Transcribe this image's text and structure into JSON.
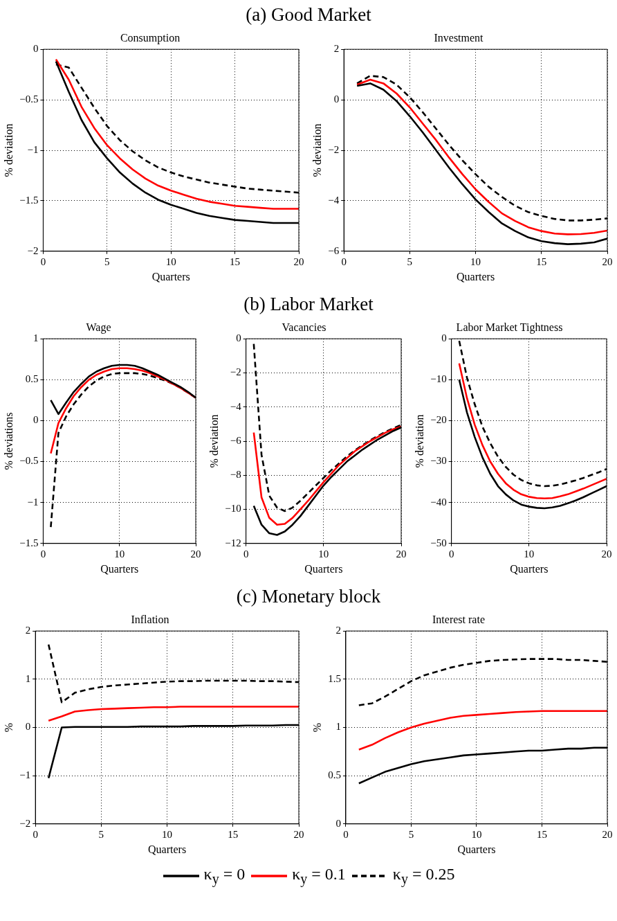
{
  "chart_data": [
    {
      "type": "line",
      "annotations": [
        "(a) Good Market"
      ],
      "title": "Consumption",
      "xlabel": "Quarters",
      "ylabel": "% deviation",
      "x": [
        1,
        2,
        3,
        4,
        5,
        6,
        7,
        8,
        9,
        10,
        11,
        12,
        13,
        14,
        15,
        16,
        17,
        18,
        19,
        20
      ],
      "xlim": [
        0,
        20
      ],
      "xticks": [
        0,
        5,
        10,
        15,
        20
      ],
      "ylim": [
        -2,
        0
      ],
      "yticks": [
        -2,
        -1.5,
        -1,
        -0.5,
        0
      ],
      "grid": true,
      "series": [
        {
          "color": "#000000",
          "line_style": "solid",
          "values": [
            -0.12,
            -0.42,
            -0.7,
            -0.92,
            -1.08,
            -1.22,
            -1.33,
            -1.42,
            -1.49,
            -1.54,
            -1.58,
            -1.62,
            -1.65,
            -1.67,
            -1.69,
            -1.7,
            -1.71,
            -1.72,
            -1.72,
            -1.72
          ]
        },
        {
          "color": "#ff0000",
          "line_style": "solid",
          "values": [
            -0.1,
            -0.3,
            -0.57,
            -0.78,
            -0.95,
            -1.08,
            -1.19,
            -1.28,
            -1.35,
            -1.4,
            -1.44,
            -1.48,
            -1.51,
            -1.53,
            -1.55,
            -1.56,
            -1.57,
            -1.58,
            -1.58,
            -1.58
          ]
        },
        {
          "color": "#000000",
          "line_style": "dashed",
          "values": [
            -0.15,
            -0.18,
            -0.38,
            -0.58,
            -0.76,
            -0.9,
            -1.01,
            -1.1,
            -1.17,
            -1.22,
            -1.26,
            -1.29,
            -1.32,
            -1.34,
            -1.36,
            -1.38,
            -1.39,
            -1.4,
            -1.41,
            -1.42
          ]
        }
      ]
    },
    {
      "type": "line",
      "title": "Investment",
      "xlabel": "Quarters",
      "ylabel": "% deviation",
      "x": [
        1,
        2,
        3,
        4,
        5,
        6,
        7,
        8,
        9,
        10,
        11,
        12,
        13,
        14,
        15,
        16,
        17,
        18,
        19,
        20
      ],
      "xlim": [
        0,
        20
      ],
      "xticks": [
        0,
        5,
        10,
        15,
        20
      ],
      "ylim": [
        -6,
        2
      ],
      "yticks": [
        -6,
        -4,
        -2,
        0,
        2
      ],
      "grid": true,
      "series": [
        {
          "color": "#000000",
          "line_style": "solid",
          "values": [
            0.55,
            0.65,
            0.4,
            -0.05,
            -0.65,
            -1.3,
            -2.0,
            -2.7,
            -3.35,
            -3.95,
            -4.45,
            -4.9,
            -5.2,
            -5.45,
            -5.6,
            -5.68,
            -5.72,
            -5.7,
            -5.65,
            -5.5
          ]
        },
        {
          "color": "#ff0000",
          "line_style": "solid",
          "values": [
            0.6,
            0.8,
            0.65,
            0.25,
            -0.3,
            -0.95,
            -1.6,
            -2.3,
            -2.95,
            -3.55,
            -4.05,
            -4.5,
            -4.8,
            -5.05,
            -5.2,
            -5.3,
            -5.33,
            -5.32,
            -5.27,
            -5.18
          ]
        },
        {
          "color": "#000000",
          "line_style": "dashed",
          "values": [
            0.65,
            0.95,
            0.9,
            0.6,
            0.1,
            -0.5,
            -1.15,
            -1.8,
            -2.4,
            -2.95,
            -3.45,
            -3.85,
            -4.2,
            -4.45,
            -4.6,
            -4.72,
            -4.78,
            -4.78,
            -4.75,
            -4.7
          ]
        }
      ]
    },
    {
      "type": "line",
      "annotations": [
        "(b) Labor Market"
      ],
      "title": "Wage",
      "xlabel": "Quarters",
      "ylabel": "% deviations",
      "x": [
        1,
        2,
        3,
        4,
        5,
        6,
        7,
        8,
        9,
        10,
        11,
        12,
        13,
        14,
        15,
        16,
        17,
        18,
        19,
        20
      ],
      "xlim": [
        0,
        20
      ],
      "xticks": [
        0,
        10,
        20
      ],
      "ylim": [
        -1.5,
        1
      ],
      "yticks": [
        -1.5,
        -1,
        -0.5,
        0,
        0.5,
        1
      ],
      "grid": true,
      "series": [
        {
          "color": "#000000",
          "line_style": "solid",
          "values": [
            0.25,
            0.08,
            0.22,
            0.35,
            0.45,
            0.54,
            0.6,
            0.64,
            0.67,
            0.68,
            0.68,
            0.67,
            0.64,
            0.6,
            0.56,
            0.51,
            0.46,
            0.41,
            0.35,
            0.28
          ]
        },
        {
          "color": "#ff0000",
          "line_style": "solid",
          "values": [
            -0.4,
            -0.03,
            0.15,
            0.3,
            0.41,
            0.5,
            0.56,
            0.6,
            0.63,
            0.64,
            0.64,
            0.63,
            0.61,
            0.58,
            0.54,
            0.5,
            0.45,
            0.4,
            0.34,
            0.28
          ]
        },
        {
          "color": "#000000",
          "line_style": "dashed",
          "values": [
            -1.3,
            -0.15,
            0.05,
            0.2,
            0.32,
            0.42,
            0.49,
            0.54,
            0.57,
            0.58,
            0.58,
            0.58,
            0.57,
            0.55,
            0.52,
            0.49,
            0.45,
            0.4,
            0.34,
            0.28
          ]
        }
      ]
    },
    {
      "type": "line",
      "title": "Vacancies",
      "xlabel": "Quarters",
      "ylabel": "% deviation",
      "x": [
        1,
        2,
        3,
        4,
        5,
        6,
        7,
        8,
        9,
        10,
        11,
        12,
        13,
        14,
        15,
        16,
        17,
        18,
        19,
        20
      ],
      "xlim": [
        0,
        20
      ],
      "xticks": [
        0,
        10,
        20
      ],
      "ylim": [
        -12,
        0
      ],
      "yticks": [
        -12,
        -10,
        -8,
        -6,
        -4,
        -2,
        0
      ],
      "grid": true,
      "series": [
        {
          "color": "#000000",
          "line_style": "solid",
          "values": [
            -9.8,
            -10.9,
            -11.4,
            -11.5,
            -11.3,
            -10.9,
            -10.4,
            -9.8,
            -9.2,
            -8.6,
            -8.1,
            -7.65,
            -7.2,
            -6.85,
            -6.5,
            -6.2,
            -5.9,
            -5.65,
            -5.4,
            -5.2
          ]
        },
        {
          "color": "#ff0000",
          "line_style": "solid",
          "values": [
            -5.5,
            -9.3,
            -10.5,
            -10.9,
            -10.85,
            -10.5,
            -10.0,
            -9.5,
            -8.95,
            -8.4,
            -7.9,
            -7.4,
            -7.0,
            -6.6,
            -6.3,
            -6.0,
            -5.75,
            -5.5,
            -5.3,
            -5.15
          ]
        },
        {
          "color": "#000000",
          "line_style": "dashed",
          "values": [
            -0.3,
            -6.8,
            -9.2,
            -9.9,
            -10.1,
            -9.9,
            -9.5,
            -9.05,
            -8.6,
            -8.15,
            -7.7,
            -7.3,
            -6.9,
            -6.55,
            -6.25,
            -5.95,
            -5.7,
            -5.45,
            -5.25,
            -5.05
          ]
        }
      ]
    },
    {
      "type": "line",
      "title": "Labor Market Tightness",
      "xlabel": "Quarters",
      "ylabel": "% deviation",
      "x": [
        1,
        2,
        3,
        4,
        5,
        6,
        7,
        8,
        9,
        10,
        11,
        12,
        13,
        14,
        15,
        16,
        17,
        18,
        19,
        20
      ],
      "xlim": [
        0,
        20
      ],
      "xticks": [
        0,
        10,
        20
      ],
      "ylim": [
        -50,
        0
      ],
      "yticks": [
        -50,
        -40,
        -30,
        -20,
        -10,
        0
      ],
      "grid": true,
      "series": [
        {
          "color": "#000000",
          "line_style": "solid",
          "values": [
            -10,
            -18,
            -24,
            -29,
            -33,
            -36,
            -38,
            -39.5,
            -40.5,
            -41,
            -41.3,
            -41.4,
            -41.2,
            -40.8,
            -40.2,
            -39.5,
            -38.7,
            -37.8,
            -36.9,
            -36
          ]
        },
        {
          "color": "#ff0000",
          "line_style": "solid",
          "values": [
            -6,
            -14.5,
            -21,
            -26,
            -30,
            -33,
            -35.3,
            -36.9,
            -38,
            -38.6,
            -38.9,
            -39,
            -38.9,
            -38.5,
            -38,
            -37.3,
            -36.6,
            -35.8,
            -35,
            -34.2
          ]
        },
        {
          "color": "#000000",
          "line_style": "dashed",
          "values": [
            -0.5,
            -9.5,
            -16,
            -21.5,
            -25.5,
            -28.8,
            -31.3,
            -33.2,
            -34.5,
            -35.3,
            -35.8,
            -36,
            -35.9,
            -35.6,
            -35.1,
            -34.6,
            -34,
            -33.3,
            -32.6,
            -31.8
          ]
        }
      ]
    },
    {
      "type": "line",
      "annotations": [
        "(c) Monetary block"
      ],
      "title": "Inflation",
      "xlabel": "Quarters",
      "ylabel": "%",
      "x": [
        1,
        2,
        3,
        4,
        5,
        6,
        7,
        8,
        9,
        10,
        11,
        12,
        13,
        14,
        15,
        16,
        17,
        18,
        19,
        20
      ],
      "xlim": [
        0,
        20
      ],
      "xticks": [
        0,
        5,
        10,
        15,
        20
      ],
      "ylim": [
        -2,
        2
      ],
      "yticks": [
        -2,
        -1,
        0,
        1,
        2
      ],
      "grid": true,
      "series": [
        {
          "color": "#000000",
          "line_style": "solid",
          "values": [
            -1.05,
            0.0,
            0.01,
            0.01,
            0.01,
            0.01,
            0.01,
            0.02,
            0.02,
            0.02,
            0.02,
            0.03,
            0.03,
            0.03,
            0.03,
            0.04,
            0.04,
            0.04,
            0.05,
            0.05
          ]
        },
        {
          "color": "#ff0000",
          "line_style": "solid",
          "values": [
            0.14,
            0.23,
            0.33,
            0.36,
            0.38,
            0.39,
            0.4,
            0.41,
            0.42,
            0.42,
            0.43,
            0.43,
            0.43,
            0.43,
            0.43,
            0.43,
            0.43,
            0.43,
            0.43,
            0.43
          ]
        },
        {
          "color": "#000000",
          "line_style": "dashed",
          "values": [
            1.72,
            0.52,
            0.72,
            0.79,
            0.84,
            0.87,
            0.89,
            0.91,
            0.93,
            0.95,
            0.96,
            0.96,
            0.97,
            0.97,
            0.97,
            0.97,
            0.96,
            0.96,
            0.95,
            0.94
          ]
        }
      ]
    },
    {
      "type": "line",
      "title": "Interest rate",
      "xlabel": "Quarters",
      "ylabel": "%",
      "x": [
        1,
        2,
        3,
        4,
        5,
        6,
        7,
        8,
        9,
        10,
        11,
        12,
        13,
        14,
        15,
        16,
        17,
        18,
        19,
        20
      ],
      "xlim": [
        0,
        20
      ],
      "xticks": [
        0,
        5,
        10,
        15,
        20
      ],
      "ylim": [
        0,
        2
      ],
      "yticks": [
        0,
        0.5,
        1,
        1.5,
        2
      ],
      "grid": true,
      "legend": "bottom",
      "series": [
        {
          "name": "κ$_{y}$ = 0",
          "color": "#000000",
          "line_style": "solid",
          "values": [
            0.42,
            0.48,
            0.54,
            0.58,
            0.62,
            0.65,
            0.67,
            0.69,
            0.71,
            0.72,
            0.73,
            0.74,
            0.75,
            0.76,
            0.76,
            0.77,
            0.78,
            0.78,
            0.79,
            0.79
          ]
        },
        {
          "name": "κ$_{y}$ = 0.1",
          "color": "#ff0000",
          "line_style": "solid",
          "values": [
            0.77,
            0.82,
            0.89,
            0.95,
            1.0,
            1.04,
            1.07,
            1.1,
            1.12,
            1.13,
            1.14,
            1.15,
            1.16,
            1.165,
            1.17,
            1.17,
            1.17,
            1.17,
            1.17,
            1.17
          ]
        },
        {
          "name": "κ$_{y}$ = 0.25",
          "color": "#000000",
          "line_style": "dashed",
          "values": [
            1.23,
            1.25,
            1.32,
            1.4,
            1.48,
            1.54,
            1.58,
            1.62,
            1.65,
            1.67,
            1.69,
            1.7,
            1.705,
            1.71,
            1.71,
            1.71,
            1.7,
            1.7,
            1.69,
            1.68
          ]
        }
      ]
    }
  ]
}
